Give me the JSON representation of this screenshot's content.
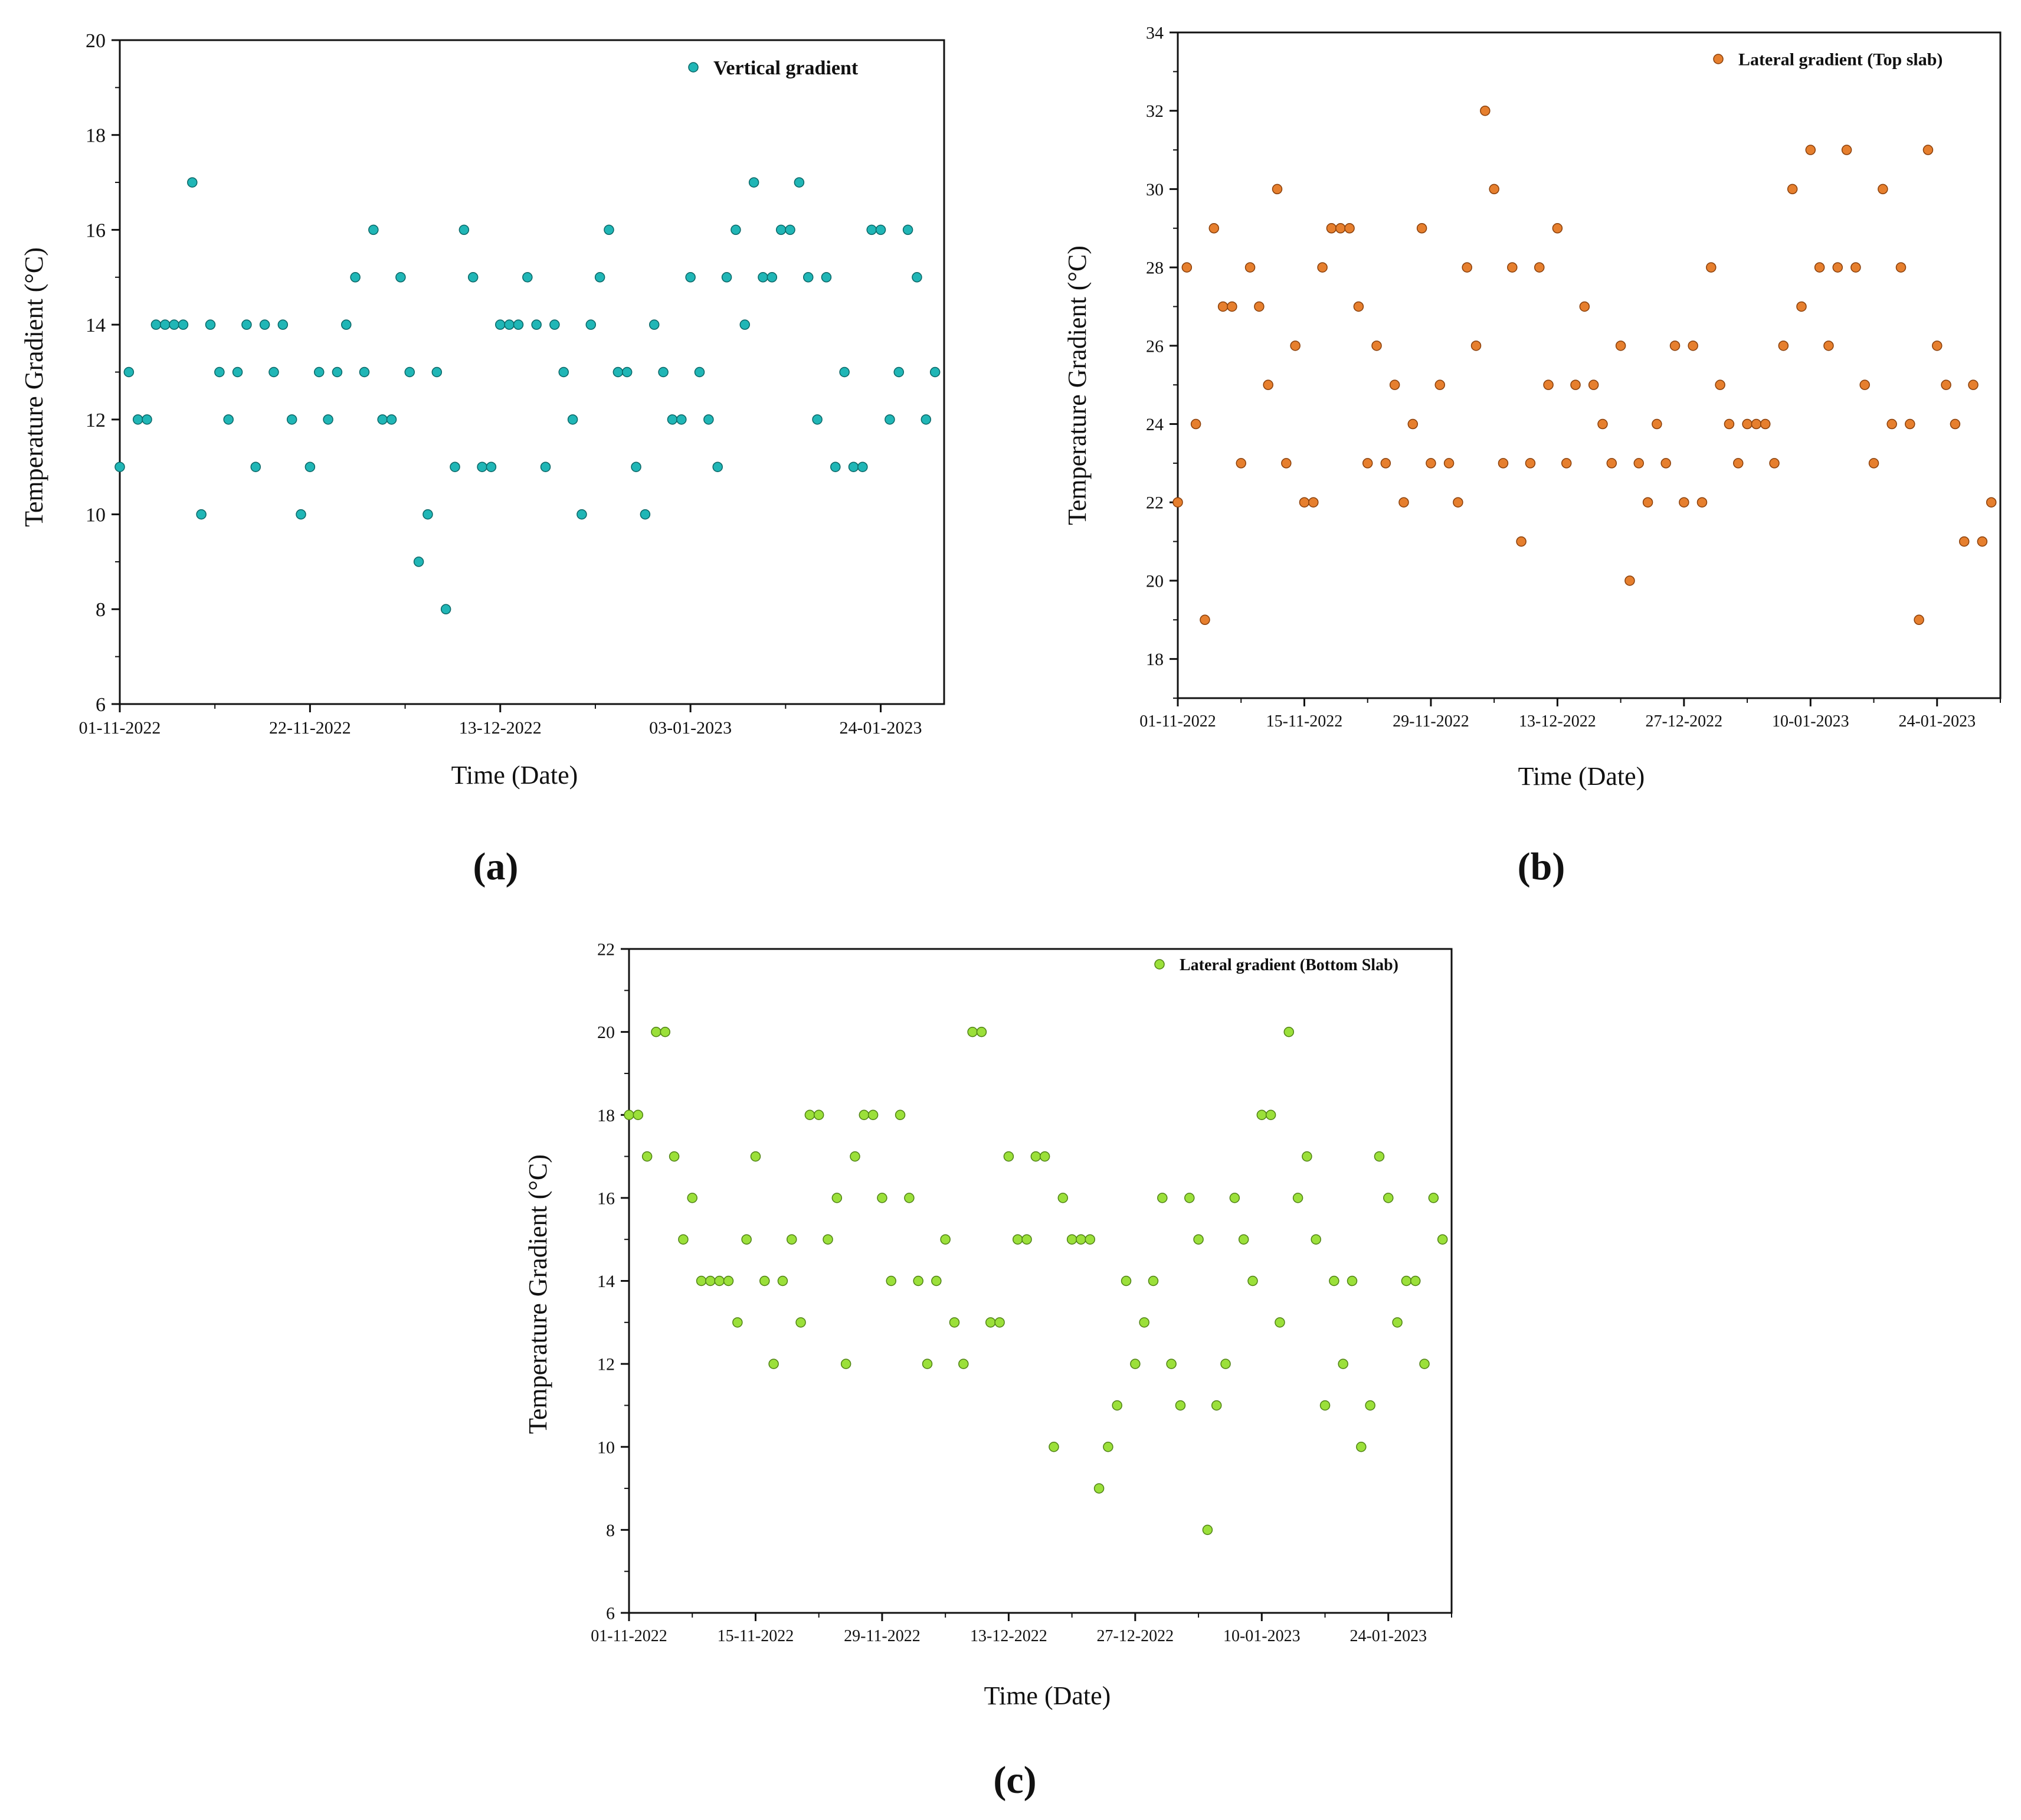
{
  "colors": {
    "background": "#ffffff",
    "axis": "#111111",
    "panel_a_marker": "#20b6b6",
    "panel_a_edge": "#0a6666",
    "panel_b_marker": "#e67f2e",
    "panel_b_edge": "#8a3f0a",
    "panel_c_marker": "#9be03a",
    "panel_c_edge": "#4f8214"
  },
  "chart_data": [
    {
      "type": "scatter",
      "panel_label": "(a)",
      "xlabel": "Time (Date)",
      "ylabel": "Temperature Gradient (°C)",
      "ylim": [
        6,
        20
      ],
      "y_ticks": [
        6,
        8,
        10,
        12,
        14,
        16,
        18,
        20
      ],
      "x_start_date": "01-11-2022",
      "xlim_days": [
        0,
        91
      ],
      "x_ticks": [
        {
          "day": 0,
          "label": "01-11-2022"
        },
        {
          "day": 21,
          "label": "22-11-2022"
        },
        {
          "day": 42,
          "label": "13-12-2022"
        },
        {
          "day": 63,
          "label": "03-01-2023"
        },
        {
          "day": 84,
          "label": "24-01-2023"
        }
      ],
      "legend": {
        "label": "Vertical gradient",
        "position": "top-right"
      },
      "series": [
        {
          "name": "Vertical gradient",
          "x": [
            0,
            1,
            2,
            3,
            4,
            5,
            6,
            7,
            8,
            9,
            10,
            11,
            12,
            13,
            14,
            15,
            16,
            17,
            18,
            19,
            20,
            21,
            22,
            23,
            24,
            25,
            26,
            27,
            28,
            29,
            30,
            31,
            32,
            33,
            34,
            35,
            36,
            37,
            38,
            39,
            40,
            41,
            42,
            43,
            44,
            45,
            46,
            47,
            48,
            49,
            50,
            51,
            52,
            53,
            54,
            55,
            56,
            57,
            58,
            59,
            60,
            61,
            62,
            63,
            64,
            65,
            66,
            67,
            68,
            69,
            70,
            71,
            72,
            73,
            74,
            75,
            76,
            77,
            78,
            79,
            80,
            81,
            82,
            83,
            84,
            85,
            86,
            87,
            88,
            89,
            90
          ],
          "y": [
            11,
            13,
            12,
            12,
            14,
            14,
            14,
            14,
            17,
            10,
            14,
            13,
            12,
            13,
            14,
            11,
            14,
            13,
            14,
            12,
            10,
            11,
            13,
            12,
            13,
            14,
            15,
            13,
            16,
            12,
            12,
            15,
            13,
            9,
            10,
            13,
            8,
            11,
            16,
            15,
            11,
            11,
            14,
            14,
            14,
            15,
            14,
            11,
            14,
            13,
            12,
            10,
            14,
            15,
            16,
            13,
            13,
            11,
            10,
            14,
            13,
            12,
            12,
            15,
            13,
            12,
            11,
            15,
            16,
            14,
            17,
            15,
            15,
            16,
            16,
            17,
            15,
            12,
            15,
            11,
            13,
            11,
            11,
            16,
            16,
            12,
            13,
            16,
            15,
            12,
            13
          ]
        }
      ]
    },
    {
      "type": "scatter",
      "panel_label": "(b)",
      "xlabel": "Time (Date)",
      "ylabel": "Temperature Gradient (°C)",
      "ylim": [
        17,
        34
      ],
      "y_ticks": [
        18,
        20,
        22,
        24,
        26,
        28,
        30,
        32,
        34
      ],
      "x_start_date": "01-11-2022",
      "xlim_days": [
        0,
        91
      ],
      "x_ticks": [
        {
          "day": 0,
          "label": "01-11-2022"
        },
        {
          "day": 14,
          "label": "15-11-2022"
        },
        {
          "day": 28,
          "label": "29-11-2022"
        },
        {
          "day": 42,
          "label": "13-12-2022"
        },
        {
          "day": 56,
          "label": "27-12-2022"
        },
        {
          "day": 70,
          "label": "10-01-2023"
        },
        {
          "day": 84,
          "label": "24-01-2023"
        }
      ],
      "legend": {
        "label": "Lateral gradient (Top slab)",
        "position": "top-right"
      },
      "series": [
        {
          "name": "Lateral gradient (Top slab)",
          "x": [
            0,
            1,
            2,
            3,
            4,
            5,
            6,
            7,
            8,
            9,
            10,
            11,
            12,
            13,
            14,
            15,
            16,
            17,
            18,
            19,
            20,
            21,
            22,
            23,
            24,
            25,
            26,
            27,
            28,
            29,
            30,
            31,
            32,
            33,
            34,
            35,
            36,
            37,
            38,
            39,
            40,
            41,
            42,
            43,
            44,
            45,
            46,
            47,
            48,
            49,
            50,
            51,
            52,
            53,
            54,
            55,
            56,
            57,
            58,
            59,
            60,
            61,
            62,
            63,
            64,
            65,
            66,
            67,
            68,
            69,
            70,
            71,
            72,
            73,
            74,
            75,
            76,
            77,
            78,
            79,
            80,
            81,
            82,
            83,
            84,
            85,
            86,
            87,
            88,
            89,
            90
          ],
          "y": [
            22,
            28,
            24,
            19,
            29,
            27,
            27,
            23,
            28,
            27,
            25,
            30,
            23,
            26,
            22,
            22,
            28,
            29,
            29,
            29,
            27,
            23,
            26,
            23,
            25,
            22,
            24,
            29,
            23,
            25,
            23,
            22,
            28,
            26,
            32,
            30,
            23,
            28,
            21,
            23,
            28,
            25,
            29,
            23,
            25,
            27,
            25,
            24,
            23,
            26,
            20,
            23,
            22,
            24,
            23,
            26,
            22,
            26,
            22,
            28,
            25,
            24,
            23,
            24,
            24,
            24,
            23,
            26,
            30,
            27,
            31,
            28,
            26,
            28,
            31,
            28,
            25,
            23,
            30,
            24,
            28,
            24,
            19,
            31,
            26,
            25,
            24,
            21,
            25,
            21,
            22
          ]
        }
      ]
    },
    {
      "type": "scatter",
      "panel_label": "(c)",
      "xlabel": "Time (Date)",
      "ylabel": "Temperature Gradient (°C)",
      "ylim": [
        6,
        22
      ],
      "y_ticks": [
        6,
        8,
        10,
        12,
        14,
        16,
        18,
        20,
        22
      ],
      "x_start_date": "01-11-2022",
      "xlim_days": [
        0,
        91
      ],
      "x_ticks": [
        {
          "day": 0,
          "label": "01-11-2022"
        },
        {
          "day": 14,
          "label": "15-11-2022"
        },
        {
          "day": 28,
          "label": "29-11-2022"
        },
        {
          "day": 42,
          "label": "13-12-2022"
        },
        {
          "day": 56,
          "label": "27-12-2022"
        },
        {
          "day": 70,
          "label": "10-01-2023"
        },
        {
          "day": 84,
          "label": "24-01-2023"
        }
      ],
      "legend": {
        "label": "Lateral gradient (Bottom Slab)",
        "position": "top-right"
      },
      "series": [
        {
          "name": "Lateral gradient (Bottom Slab)",
          "x": [
            0,
            1,
            2,
            3,
            4,
            5,
            6,
            7,
            8,
            9,
            10,
            11,
            12,
            13,
            14,
            15,
            16,
            17,
            18,
            19,
            20,
            21,
            22,
            23,
            24,
            25,
            26,
            27,
            28,
            29,
            30,
            31,
            32,
            33,
            34,
            35,
            36,
            37,
            38,
            39,
            40,
            41,
            42,
            43,
            44,
            45,
            46,
            47,
            48,
            49,
            50,
            51,
            52,
            53,
            54,
            55,
            56,
            57,
            58,
            59,
            60,
            61,
            62,
            63,
            64,
            65,
            66,
            67,
            68,
            69,
            70,
            71,
            72,
            73,
            74,
            75,
            76,
            77,
            78,
            79,
            80,
            81,
            82,
            83,
            84,
            85,
            86,
            87,
            88,
            89,
            90
          ],
          "y": [
            18,
            18,
            17,
            20,
            20,
            17,
            15,
            16,
            14,
            14,
            14,
            14,
            13,
            15,
            17,
            14,
            12,
            14,
            15,
            13,
            18,
            18,
            15,
            16,
            12,
            17,
            18,
            18,
            16,
            14,
            18,
            16,
            14,
            12,
            14,
            15,
            13,
            12,
            20,
            20,
            13,
            13,
            17,
            15,
            15,
            17,
            17,
            10,
            16,
            15,
            15,
            15,
            9,
            10,
            11,
            14,
            12,
            13,
            14,
            16,
            12,
            11,
            16,
            15,
            8,
            11,
            12,
            16,
            15,
            14,
            18,
            18,
            13,
            20,
            16,
            17,
            15,
            11,
            14,
            12,
            14,
            10,
            11,
            17,
            16,
            13,
            14,
            14,
            12,
            16,
            15
          ]
        }
      ]
    }
  ]
}
